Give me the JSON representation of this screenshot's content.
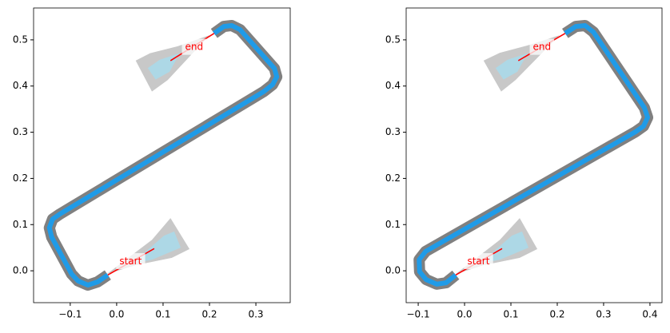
{
  "chart_data": [
    {
      "type": "path",
      "xlim": [
        -0.179,
        0.374
      ],
      "ylim": [
        -0.069,
        0.569
      ],
      "xticks": [
        {
          "value": -0.1,
          "label": "−0.1"
        },
        {
          "value": 0,
          "label": "0.0"
        },
        {
          "value": 0.1,
          "label": "0.1"
        },
        {
          "value": 0.2,
          "label": "0.2"
        },
        {
          "value": 0.3,
          "label": "0.3"
        }
      ],
      "yticks": [
        {
          "value": 0,
          "label": "0.0"
        },
        {
          "value": 0.1,
          "label": "0.1"
        },
        {
          "value": 0.2,
          "label": "0.2"
        },
        {
          "value": 0.3,
          "label": "0.3"
        },
        {
          "value": 0.4,
          "label": "0.4"
        },
        {
          "value": 0.5,
          "label": "0.5"
        }
      ],
      "path": {
        "color": "#1f9be8",
        "casing_color": "#808080",
        "x": [
          -0.019,
          -0.041,
          -0.062,
          -0.083,
          -0.097,
          -0.14,
          -0.145,
          -0.138,
          -0.122,
          0.317,
          0.336,
          0.345,
          0.34,
          0.266,
          0.248,
          0.231,
          0.21
        ],
        "y": [
          -0.009,
          -0.024,
          -0.031,
          -0.022,
          -0.007,
          0.073,
          0.093,
          0.112,
          0.123,
          0.388,
          0.403,
          0.42,
          0.438,
          0.522,
          0.531,
          0.529,
          0.514
        ]
      },
      "segments": [
        {
          "color": "red",
          "x": [
            -0.019,
            0.081
          ],
          "y": [
            -0.009,
            0.048
          ]
        },
        {
          "color": "red",
          "x": [
            0.21,
            0.116
          ],
          "y": [
            0.514,
            0.455
          ]
        }
      ],
      "regions": [
        {
          "color": "#c8c8c8",
          "x": [
            -0.021,
            0.076,
            0.116,
            0.157,
            0.119,
            0.041
          ],
          "y": [
            -0.007,
            0.067,
            0.114,
            0.047,
            0.028,
            0.012
          ]
        },
        {
          "color": "#add8e6",
          "x": [
            0.033,
            0.102,
            0.124,
            0.138,
            0.076
          ],
          "y": [
            0.016,
            0.076,
            0.085,
            0.05,
            0.024
          ]
        },
        {
          "color": "#c8c8c8",
          "x": [
            0.041,
            0.072,
            0.131,
            0.2,
            0.11,
            0.076
          ],
          "y": [
            0.455,
            0.471,
            0.486,
            0.51,
            0.413,
            0.388
          ]
        },
        {
          "color": "#add8e6",
          "x": [
            0.067,
            0.093,
            0.136,
            0.114,
            0.084
          ],
          "y": [
            0.439,
            0.457,
            0.471,
            0.431,
            0.414
          ]
        }
      ],
      "annotations": [
        {
          "text": "start",
          "x": 0.03,
          "y": 0.02
        },
        {
          "text": "end",
          "x": 0.167,
          "y": 0.484
        }
      ]
    },
    {
      "type": "path",
      "xlim": [
        -0.126,
        0.426
      ],
      "ylim": [
        -0.069,
        0.569
      ],
      "xticks": [
        {
          "value": -0.1,
          "label": "−0.1"
        },
        {
          "value": 0,
          "label": "0.0"
        },
        {
          "value": 0.1,
          "label": "0.1"
        },
        {
          "value": 0.2,
          "label": "0.2"
        },
        {
          "value": 0.3,
          "label": "0.3"
        },
        {
          "value": 0.4,
          "label": "0.4"
        }
      ],
      "yticks": [
        {
          "value": 0,
          "label": "0.0"
        },
        {
          "value": 0.1,
          "label": "0.1"
        },
        {
          "value": 0.2,
          "label": "0.2"
        },
        {
          "value": 0.3,
          "label": "0.3"
        },
        {
          "value": 0.4,
          "label": "0.4"
        },
        {
          "value": 0.5,
          "label": "0.5"
        }
      ],
      "path": {
        "color": "#1f9be8",
        "casing_color": "#808080",
        "x": [
          -0.019,
          -0.04,
          -0.06,
          -0.083,
          -0.097,
          -0.098,
          -0.084,
          0.369,
          0.386,
          0.395,
          0.388,
          0.278,
          0.26,
          0.24,
          0.217
        ],
        "y": [
          -0.009,
          -0.026,
          -0.029,
          -0.019,
          -0.002,
          0.024,
          0.042,
          0.301,
          0.313,
          0.332,
          0.353,
          0.517,
          0.531,
          0.529,
          0.514
        ]
      },
      "segments": [
        {
          "color": "red",
          "x": [
            -0.019,
            0.081
          ],
          "y": [
            -0.009,
            0.048
          ]
        },
        {
          "color": "red",
          "x": [
            0.217,
            0.116
          ],
          "y": [
            0.514,
            0.455
          ]
        }
      ],
      "regions": [
        {
          "color": "#c8c8c8",
          "x": [
            -0.019,
            0.076,
            0.119,
            0.157,
            0.119,
            0.041
          ],
          "y": [
            -0.007,
            0.067,
            0.114,
            0.047,
            0.028,
            0.012
          ]
        },
        {
          "color": "#add8e6",
          "x": [
            0.033,
            0.102,
            0.124,
            0.138,
            0.076
          ],
          "y": [
            0.016,
            0.076,
            0.085,
            0.05,
            0.024
          ]
        },
        {
          "color": "#c8c8c8",
          "x": [
            0.041,
            0.076,
            0.136,
            0.205,
            0.11,
            0.079
          ],
          "y": [
            0.455,
            0.472,
            0.488,
            0.51,
            0.413,
            0.388
          ]
        },
        {
          "color": "#add8e6",
          "x": [
            0.067,
            0.093,
            0.136,
            0.114,
            0.084
          ],
          "y": [
            0.439,
            0.457,
            0.471,
            0.431,
            0.414
          ]
        }
      ],
      "annotations": [
        {
          "text": "start",
          "x": 0.03,
          "y": 0.02
        },
        {
          "text": "end",
          "x": 0.167,
          "y": 0.484
        }
      ]
    }
  ]
}
